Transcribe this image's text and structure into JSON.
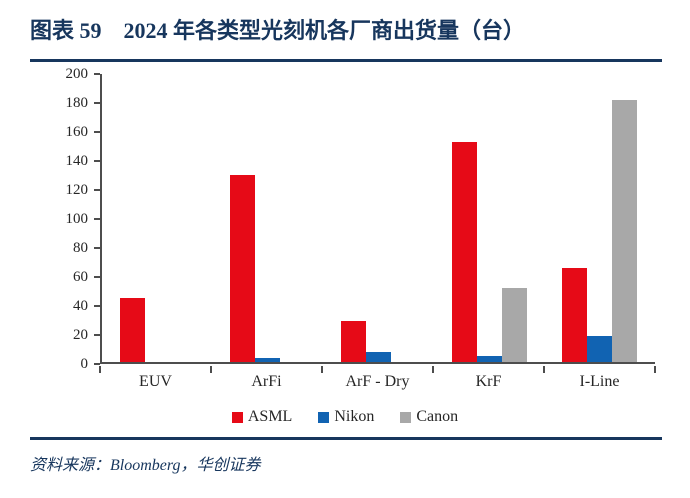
{
  "header": {
    "figure_label": "图表 59",
    "title": "2024 年各类型光刻机各厂商出货量（台）"
  },
  "chart_data": {
    "type": "bar",
    "title": "2024 年各类型光刻机各厂商出货量（台）",
    "categories": [
      "EUV",
      "ArFi",
      "ArF - Dry",
      "KrF",
      "I-Line"
    ],
    "series": [
      {
        "name": "ASML",
        "color": "#e60a17",
        "values": [
          44,
          129,
          28,
          152,
          65
        ]
      },
      {
        "name": "Nikon",
        "color": "#1163b2",
        "values": [
          0,
          3,
          7,
          4,
          18
        ]
      },
      {
        "name": "Canon",
        "color": "#a8a8a8",
        "values": [
          0,
          0,
          0,
          51,
          181
        ]
      }
    ],
    "ylim": [
      0,
      200
    ],
    "ytick_step": 20,
    "xlabel": "",
    "ylabel": "",
    "grid": false,
    "legend_position": "bottom"
  },
  "colors": {
    "accent_navy": "#17365d",
    "axis_gray": "#4d4d4d"
  },
  "footer": {
    "source": "资料来源：Bloomberg，华创证券"
  }
}
